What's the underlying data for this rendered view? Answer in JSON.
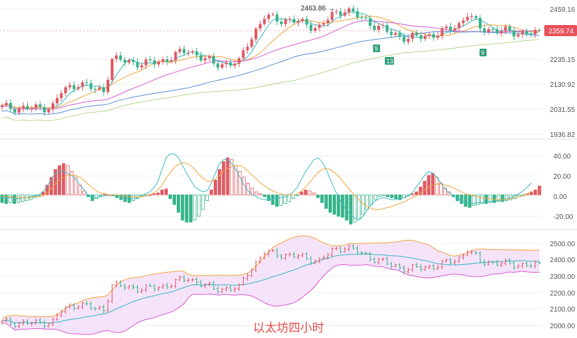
{
  "caption": "以太坊四小时",
  "colors": {
    "up": "#e05a62",
    "down": "#35b38a",
    "price_badge": "#e8505b",
    "ma_fast": "#31b7c0",
    "ma_mid": "#f2a43a",
    "ma_slow": "#d65bd1",
    "ma_long": "#5b8fd6",
    "ma_longest": "#b6d88a",
    "dif": "#3cb9c4",
    "dea": "#f2a43a",
    "boll_band": "#f2a43a",
    "boll_lower": "#d65bd1",
    "boll_mid": "#31b7c0",
    "boll_fill": "#f3dcf7"
  },
  "chart_data": [
    {
      "type": "candlestick",
      "panel": "price",
      "yticks": [
        "2459.16",
        "2235.15",
        "2130.92",
        "2031.55",
        "1936.82"
      ],
      "ylim": [
        1915,
        2480
      ],
      "last_price": "2359.74",
      "annotations": [
        {
          "text": "2463.86",
          "kind": "high-marker"
        },
        {
          "text": "9",
          "kind": "sequential-count"
        },
        {
          "text": "13",
          "kind": "sequential-count"
        },
        {
          "text": "9",
          "kind": "sequential-count"
        }
      ],
      "moving_averages": [
        "ma_fast",
        "ma_mid",
        "ma_slow",
        "ma_long",
        "ma_longest"
      ]
    },
    {
      "type": "bar",
      "panel": "macd",
      "indicator": "MACD",
      "yticks": [
        "40.00",
        "20.00",
        "0.00",
        "-20.00"
      ],
      "ylim": [
        -32,
        50
      ],
      "histogram": [
        -8,
        -9,
        -8,
        -9,
        -8,
        -7,
        -6,
        -5,
        -3,
        -1,
        3,
        10,
        18,
        26,
        30,
        32,
        30,
        24,
        18,
        10,
        4,
        -2,
        -6,
        -4,
        -1,
        1,
        0,
        -1,
        -3,
        -5,
        -7,
        -8,
        -6,
        -4,
        -2,
        -1,
        0,
        1,
        2,
        5,
        6,
        -4,
        -10,
        -18,
        -26,
        -28,
        -28,
        -26,
        -22,
        -15,
        -6,
        5,
        15,
        26,
        34,
        38,
        36,
        30,
        24,
        18,
        12,
        7,
        3,
        1,
        -2,
        -6,
        -10,
        -12,
        -11,
        -9,
        -7,
        -4,
        -1,
        3,
        5,
        4,
        2,
        -3,
        -8,
        -14,
        -18,
        -20,
        -22,
        -23,
        -26,
        -30,
        -28,
        -24,
        -20,
        -15,
        -10,
        -5,
        -2,
        -1,
        -2,
        -3,
        -4,
        -5,
        -3,
        -1,
        1,
        3,
        8,
        14,
        20,
        22,
        18,
        12,
        7,
        3,
        -2,
        -6,
        -9,
        -12,
        -13,
        -11,
        -10,
        -9,
        -9,
        -8,
        -8,
        -7,
        -7,
        -6,
        -5,
        -4,
        -2,
        -1,
        1,
        3,
        5,
        9
      ],
      "dif": [
        -2,
        -3,
        -3,
        -4,
        -4,
        -3,
        -3,
        -2,
        -1,
        0,
        3,
        9,
        16,
        22,
        24,
        24,
        22,
        20,
        16,
        10,
        5,
        0,
        -3,
        -3,
        -2,
        -1,
        0,
        0,
        -1,
        -2,
        -3,
        -4,
        -4,
        -3,
        -1,
        1,
        3,
        7,
        14,
        26,
        38,
        42,
        42,
        38,
        30,
        22,
        15,
        8,
        5,
        3,
        4,
        12,
        22,
        32,
        36,
        36,
        32,
        26,
        18,
        10,
        4,
        0,
        -2,
        -4,
        -5,
        -5,
        -4,
        -3,
        -3,
        -2,
        0,
        3,
        8,
        16,
        24,
        30,
        36,
        38,
        34,
        26,
        16,
        6,
        -2,
        -10,
        -16,
        -20,
        -24,
        -26,
        -22,
        -16,
        -10,
        -6,
        -4,
        -3,
        -4,
        -5,
        -5,
        -4,
        -3,
        -1,
        2,
        8,
        14,
        20,
        24,
        22,
        18,
        12,
        6,
        2,
        -1,
        -4,
        -6,
        -8,
        -9,
        -9,
        -8,
        -8,
        -7,
        -7,
        -6,
        -6,
        -5,
        -4,
        -3,
        -1,
        1,
        4,
        8,
        12
      ],
      "dea": [
        -1,
        -2,
        -2,
        -3,
        -3,
        -3,
        -3,
        -3,
        -2,
        -2,
        -1,
        2,
        6,
        11,
        15,
        18,
        20,
        20,
        20,
        18,
        15,
        11,
        7,
        4,
        2,
        1,
        0,
        0,
        0,
        -1,
        -1,
        -2,
        -2,
        -2,
        -2,
        -1,
        0,
        2,
        5,
        10,
        17,
        23,
        28,
        31,
        33,
        32,
        30,
        26,
        21,
        17,
        14,
        14,
        16,
        20,
        24,
        27,
        29,
        30,
        30,
        28,
        24,
        20,
        16,
        12,
        9,
        6,
        4,
        2,
        1,
        0,
        0,
        0,
        1,
        4,
        8,
        13,
        18,
        23,
        26,
        27,
        26,
        23,
        19,
        14,
        9,
        4,
        -1,
        -5,
        -9,
        -12,
        -14,
        -15,
        -15,
        -14,
        -13,
        -12,
        -10,
        -9,
        -7,
        -5,
        -3,
        -1,
        2,
        5,
        8,
        10,
        11,
        11,
        10,
        9,
        7,
        5,
        3,
        1,
        0,
        -1,
        -2,
        -3,
        -4,
        -4,
        -5,
        -5,
        -5,
        -5,
        -4,
        -3,
        -2,
        -1,
        1,
        3
      ]
    },
    {
      "type": "candlestick",
      "panel": "bollinger",
      "indicator": "BOLL",
      "yticks": [
        "2500.00",
        "2400.00",
        "2300.00",
        "2200.00",
        "2100.00",
        "2000.00"
      ],
      "ylim": [
        1990,
        2520
      ]
    }
  ]
}
